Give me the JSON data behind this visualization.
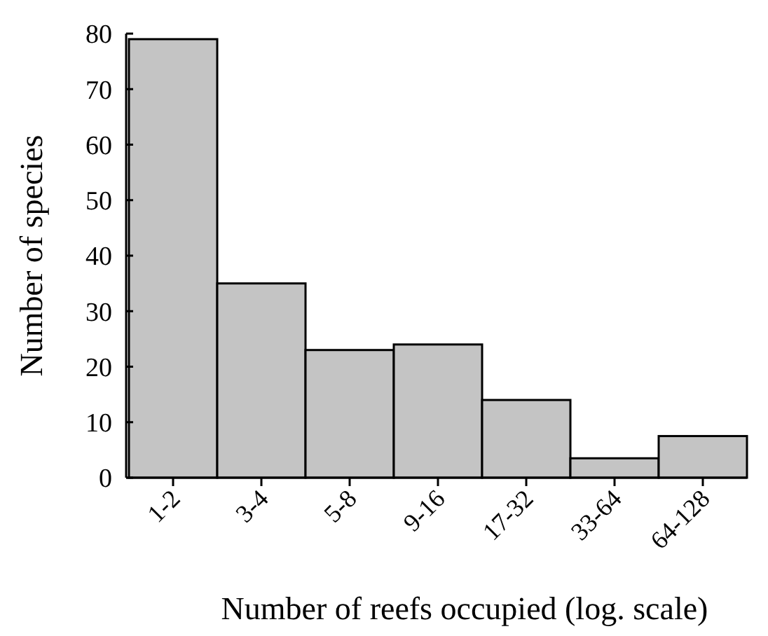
{
  "chart_data": {
    "type": "bar",
    "xlabel": "Number of reefs occupied (log. scale)",
    "ylabel": "Number of species",
    "categories": [
      "1-2",
      "3-4",
      "5-8",
      "9-16",
      "17-32",
      "33-64",
      "64-128"
    ],
    "values": [
      79,
      35,
      23,
      24,
      14,
      3.5,
      7.5
    ],
    "color": "#c4c4c4",
    "ylim": [
      0,
      80
    ],
    "yticks": [
      0,
      10,
      20,
      30,
      40,
      50,
      60,
      70,
      80
    ],
    "grid": false
  }
}
